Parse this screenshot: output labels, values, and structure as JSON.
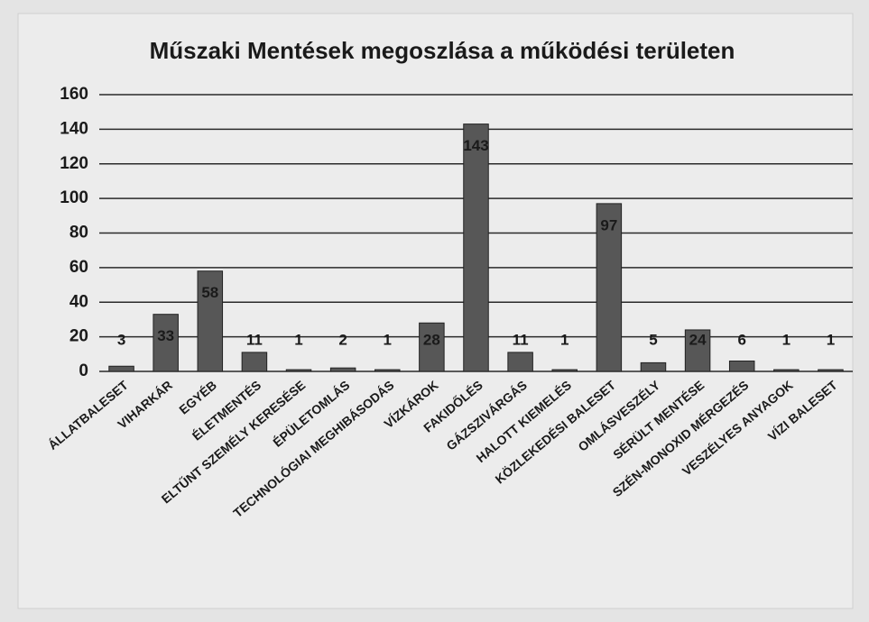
{
  "chart_data": {
    "type": "bar",
    "title": "Műszaki Mentések megoszlása a működési területen",
    "categories": [
      "ÁLLATBALESET",
      "VIHARKÁR",
      "EGYÉB",
      "ÉLETMENTÉS",
      "ELTŰNT SZEMÉLY KERESÉSE",
      "ÉPÜLETOMLÁS",
      "TECHNOLÓGIAI MEGHIBÁSODÁS",
      "VÍZKÁROK",
      "FAKIDŐLÉS",
      "GÁZSZIVÁRGÁS",
      "HALOTT KIEMELÉS",
      "KÖZLEKEDÉSI BALESET",
      "OMLÁSVESZÉLY",
      "SÉRÜLT MENTÉSE",
      "SZÉN-MONOXID MÉRGEZÉS",
      "VESZÉLYES ANYAGOK",
      "VÍZI BALESET"
    ],
    "values": [
      3,
      33,
      58,
      11,
      1,
      2,
      1,
      28,
      143,
      11,
      1,
      97,
      5,
      24,
      6,
      1,
      1
    ],
    "color": "#575757",
    "ylim": [
      0,
      160
    ],
    "yticks": [
      0,
      20,
      40,
      60,
      80,
      100,
      120,
      140,
      160
    ],
    "grid": true
  }
}
